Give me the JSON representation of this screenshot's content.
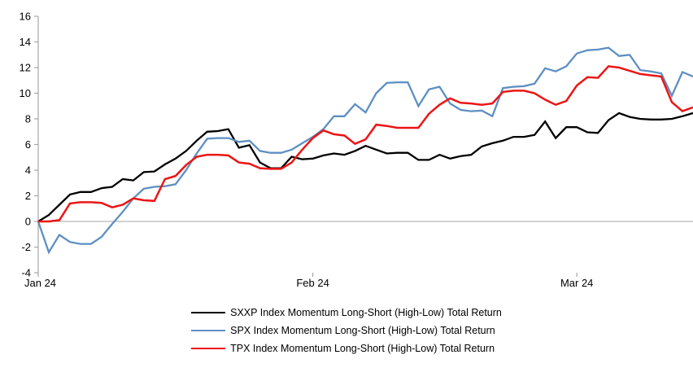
{
  "chart_data": {
    "type": "line",
    "title": "",
    "xlabel": "",
    "ylabel": "",
    "grid": "zero-line-only",
    "legend_position": "bottom",
    "x_axis": {
      "point_count": 63,
      "tick_labels": [
        "Jan 24",
        "Feb 24",
        "Mar 24"
      ],
      "tick_indices": [
        0,
        26,
        51
      ]
    },
    "y_axis": {
      "min": -4,
      "max": 16,
      "step": 2,
      "ticks": [
        16,
        14,
        12,
        10,
        8,
        6,
        4,
        2,
        0,
        -2,
        -4
      ]
    },
    "series": [
      {
        "key": "sxxp",
        "name": "SXXP Index Momentum Long-Short (High-Low) Total Return",
        "color": "#000000",
        "values": [
          0,
          0.5,
          1.3,
          2.1,
          2.3,
          2.3,
          2.6,
          2.7,
          3.3,
          3.2,
          3.85,
          3.9,
          4.45,
          4.9,
          5.5,
          6.3,
          7.0,
          7.05,
          7.2,
          5.75,
          5.95,
          4.6,
          4.15,
          4.15,
          5.05,
          4.85,
          4.9,
          5.15,
          5.3,
          5.2,
          5.5,
          5.9,
          5.6,
          5.3,
          5.35,
          5.35,
          4.8,
          4.8,
          5.2,
          4.9,
          5.1,
          5.2,
          5.85,
          6.1,
          6.3,
          6.6,
          6.6,
          6.75,
          7.8,
          6.5,
          7.35,
          7.35,
          6.95,
          6.9,
          7.9,
          8.45,
          8.15,
          8.0,
          7.95,
          7.95,
          8.0,
          8.2,
          8.45
        ]
      },
      {
        "key": "spx",
        "name": "SPX Index Momentum Long-Short (High-Low) Total Return",
        "color": "#5E8FC3",
        "values": [
          0,
          -2.4,
          -1.05,
          -1.6,
          -1.75,
          -1.75,
          -1.2,
          -0.2,
          0.75,
          1.8,
          2.55,
          2.7,
          2.75,
          2.9,
          4.0,
          5.3,
          6.45,
          6.5,
          6.5,
          6.2,
          6.3,
          5.5,
          5.35,
          5.35,
          5.6,
          6.1,
          6.6,
          7.2,
          8.2,
          8.2,
          9.15,
          8.5,
          10.0,
          10.8,
          10.85,
          10.85,
          9.0,
          10.3,
          10.5,
          9.2,
          8.7,
          8.6,
          8.65,
          8.2,
          10.4,
          10.5,
          10.55,
          10.75,
          11.95,
          11.7,
          12.1,
          13.1,
          13.35,
          13.4,
          13.55,
          12.9,
          13.0,
          11.8,
          11.7,
          11.55,
          9.8,
          11.65,
          11.3
        ]
      },
      {
        "key": "tpx",
        "name": "TPX Index Momentum Long-Short (High-Low) Total Return",
        "color": "#EC1515",
        "values": [
          0,
          0,
          0.1,
          1.4,
          1.5,
          1.5,
          1.45,
          1.1,
          1.3,
          1.8,
          1.65,
          1.6,
          3.3,
          3.55,
          4.4,
          5.05,
          5.2,
          5.2,
          5.15,
          4.6,
          4.5,
          4.15,
          4.1,
          4.1,
          4.6,
          5.6,
          6.5,
          7.1,
          6.8,
          6.7,
          6.05,
          6.4,
          7.55,
          7.45,
          7.3,
          7.3,
          7.3,
          8.4,
          9.1,
          9.6,
          9.25,
          9.2,
          9.1,
          9.2,
          10.1,
          10.2,
          10.2,
          10.0,
          9.5,
          9.1,
          9.4,
          10.6,
          11.25,
          11.2,
          12.1,
          12.0,
          11.75,
          11.5,
          11.4,
          11.3,
          9.3,
          8.6,
          8.9
        ]
      }
    ],
    "colors": {
      "axis": "#a6a6a6",
      "zero_line": "#a6a6a6",
      "tick_label": "#000000"
    }
  }
}
